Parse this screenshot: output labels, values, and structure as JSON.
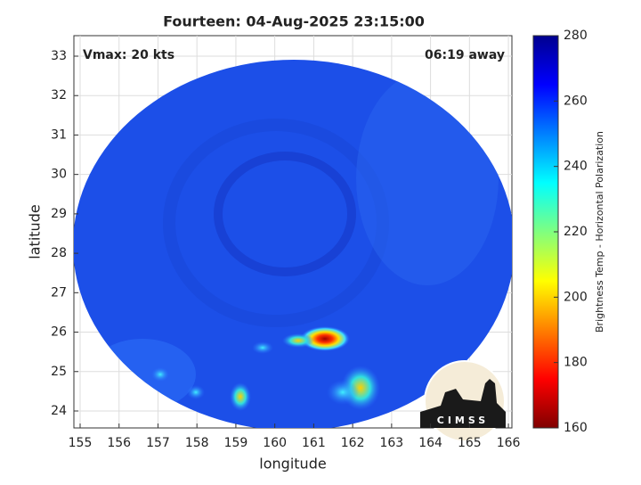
{
  "map": {
    "title": "Fourteen: 04-Aug-2025 23:15:00",
    "annotations": {
      "vmax": "Vmax: 20 kts",
      "away": "06:19 away"
    },
    "x_label": "longitude",
    "y_label": "latitude",
    "xlim": [
      154.84,
      166.09
    ],
    "ylim": [
      23.57,
      33.52
    ],
    "xticks": [
      155,
      156,
      157,
      158,
      159,
      160,
      161,
      162,
      163,
      164,
      165,
      166
    ],
    "yticks": [
      24,
      25,
      26,
      27,
      28,
      29,
      30,
      31,
      32,
      33
    ],
    "grid": true,
    "colorbar": {
      "label": "Brightness Temp - Horizontal Polarization",
      "lim": [
        160,
        280
      ],
      "ticks": [
        160,
        180,
        200,
        220,
        240,
        260,
        280
      ]
    },
    "logo": "CIMSS"
  }
}
